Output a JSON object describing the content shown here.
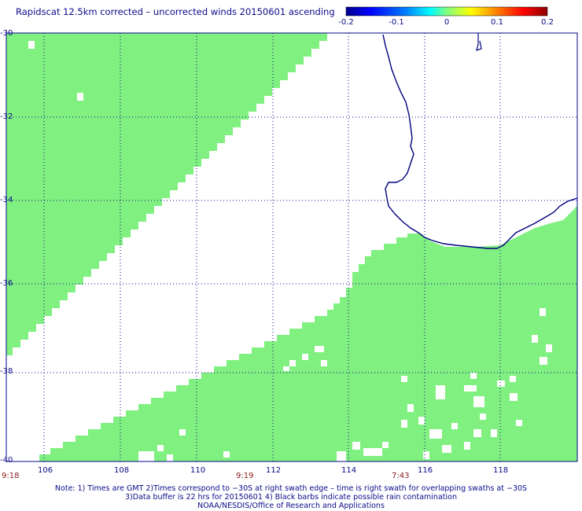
{
  "title": "Rapidscat 12.5km corrected – uncorrected winds 20150601 ascending",
  "colorbar": {
    "ticks": [
      "-0.2",
      "-0.1",
      "0",
      "0.1",
      "0.2"
    ],
    "colors": [
      "#0000a0",
      "#0000ff",
      "#00a0ff",
      "#00ffff",
      "#80ff80",
      "#ffff00",
      "#ff8000",
      "#ff0000",
      "#a00000"
    ]
  },
  "map": {
    "lat_labels": [
      "-30",
      "-32",
      "-34",
      "-36",
      "-38",
      "-40"
    ],
    "lon_labels": [
      "106",
      "108",
      "110",
      "112",
      "114",
      "116",
      "118"
    ],
    "time_labels": [
      "9:18",
      "9:19",
      "7:43"
    ],
    "fill_color": "#80f080",
    "coast_color": "#000080"
  },
  "notes": {
    "line1": "Note: 1) Times are GMT 2)Times correspond to −30S at right swath edge – time is right swath for overlapping swaths at −30S",
    "line2": "3)Data buffer is 22 hrs for 20150601 4) Black barbs indicate possible rain contamination",
    "line3": "NOAA/NESDIS/Office of Research and Applications"
  }
}
